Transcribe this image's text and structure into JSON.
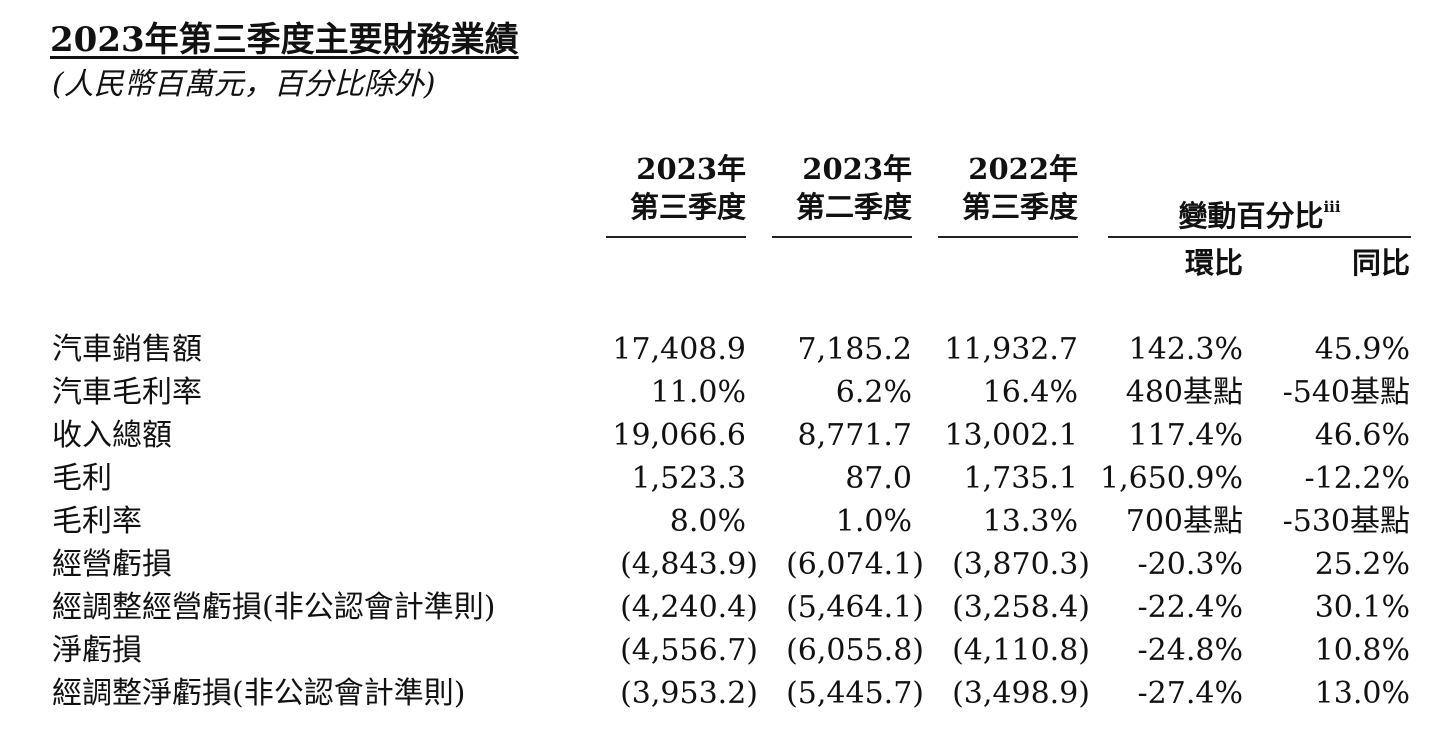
{
  "header": {
    "title": "2023年第三季度主要財務業績",
    "subtitle": "(人民幣百萬元，百分比除外)"
  },
  "columns": [
    {
      "line1": "2023年",
      "line2": "第三季度"
    },
    {
      "line1": "2023年",
      "line2": "第二季度"
    },
    {
      "line1": "2022年",
      "line2": "第三季度"
    }
  ],
  "change_header": {
    "label": "變動百分比",
    "footnote": "iii",
    "qoq": "環比",
    "yoy": "同比"
  },
  "rows": [
    {
      "label": "汽車銷售額",
      "q3_2023": "17,408.9",
      "q2_2023": "7,185.2",
      "q3_2022": "11,932.7",
      "qoq": "142.3%",
      "yoy": "45.9%"
    },
    {
      "label": "汽車毛利率",
      "q3_2023": "11.0%",
      "q2_2023": "6.2%",
      "q3_2022": "16.4%",
      "qoq": "480基點",
      "yoy": "-540基點"
    },
    {
      "label": "收入總額",
      "q3_2023": "19,066.6",
      "q2_2023": "8,771.7",
      "q3_2022": "13,002.1",
      "qoq": "117.4%",
      "yoy": "46.6%"
    },
    {
      "label": "毛利",
      "q3_2023": "1,523.3",
      "q2_2023": "87.0",
      "q3_2022": "1,735.1",
      "qoq": "1,650.9%",
      "yoy": "-12.2%"
    },
    {
      "label": "毛利率",
      "q3_2023": "8.0%",
      "q2_2023": "1.0%",
      "q3_2022": "13.3%",
      "qoq": "700基點",
      "yoy": "-530基點"
    },
    {
      "label": "經營虧損",
      "q3_2023": "(4,843.9)",
      "q2_2023": "(6,074.1)",
      "q3_2022": "(3,870.3)",
      "qoq": "-20.3%",
      "yoy": "25.2%"
    },
    {
      "label": "經調整經營虧損(非公認會計準則)",
      "q3_2023": "(4,240.4)",
      "q2_2023": "(5,464.1)",
      "q3_2022": "(3,258.4)",
      "qoq": "-22.4%",
      "yoy": "30.1%"
    },
    {
      "label": "淨虧損",
      "q3_2023": "(4,556.7)",
      "q2_2023": "(6,055.8)",
      "q3_2022": "(4,110.8)",
      "qoq": "-24.8%",
      "yoy": "10.8%"
    },
    {
      "label": "經調整淨虧損(非公認會計準則)",
      "q3_2023": "(3,953.2)",
      "q2_2023": "(5,445.7)",
      "q3_2022": "(3,498.9)",
      "qoq": "-27.4%",
      "yoy": "13.0%"
    }
  ]
}
